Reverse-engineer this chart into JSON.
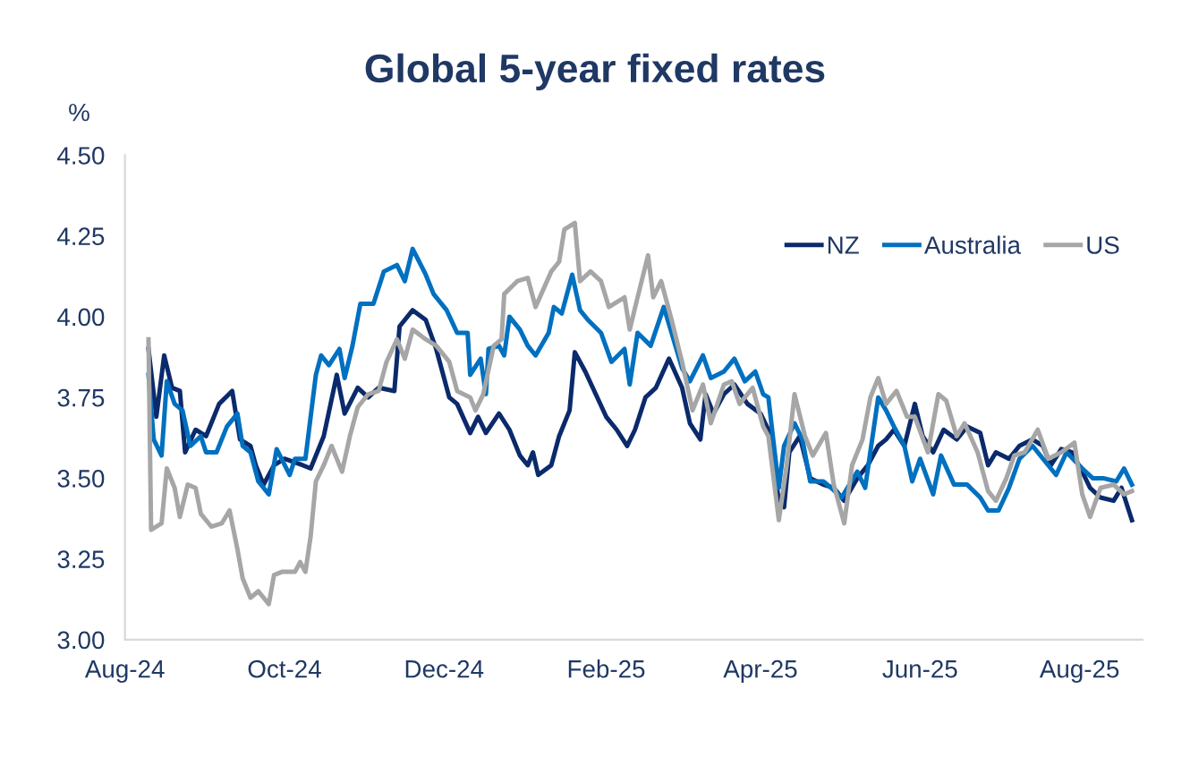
{
  "chart_data": {
    "type": "line",
    "title": "Global 5-year fixed rates",
    "ylabel": "%",
    "xlim": [
      "2024-08-01",
      "2025-08-25"
    ],
    "xticks": [
      {
        "value": "2024-08-01",
        "label": "Aug-24"
      },
      {
        "value": "2024-10-01",
        "label": "Oct-24"
      },
      {
        "value": "2024-12-01",
        "label": "Dec-24"
      },
      {
        "value": "2025-02-01",
        "label": "Feb-25"
      },
      {
        "value": "2025-04-01",
        "label": "Apr-25"
      },
      {
        "value": "2025-06-01",
        "label": "Jun-25"
      },
      {
        "value": "2025-08-01",
        "label": "Aug-25"
      }
    ],
    "ylim": [
      3.0,
      4.5
    ],
    "yticks": [
      {
        "value": 3.0,
        "label": "3.00"
      },
      {
        "value": 3.25,
        "label": "3.25"
      },
      {
        "value": 3.5,
        "label": "3.50"
      },
      {
        "value": 3.75,
        "label": "3.75"
      },
      {
        "value": 4.0,
        "label": "4.00"
      },
      {
        "value": 4.25,
        "label": "4.25"
      },
      {
        "value": 4.5,
        "label": "4.50"
      }
    ],
    "legend": "top right",
    "series": [
      {
        "name": "NZ",
        "color": "#0b2a6b",
        "x": [
          "2024-08-10",
          "2024-08-13",
          "2024-08-16",
          "2024-08-19",
          "2024-08-22",
          "2024-08-24",
          "2024-08-28",
          "2024-09-01",
          "2024-09-06",
          "2024-09-11",
          "2024-09-14",
          "2024-09-18",
          "2024-09-20",
          "2024-09-23",
          "2024-09-27",
          "2024-10-01",
          "2024-10-08",
          "2024-10-11",
          "2024-10-16",
          "2024-10-21",
          "2024-10-24",
          "2024-10-29",
          "2024-11-02",
          "2024-11-06",
          "2024-11-12",
          "2024-11-14",
          "2024-11-19",
          "2024-11-24",
          "2024-11-28",
          "2024-12-03",
          "2024-12-06",
          "2024-12-11",
          "2024-12-14",
          "2024-12-17",
          "2024-12-22",
          "2024-12-26",
          "2024-12-30",
          "2025-01-02",
          "2025-01-04",
          "2025-01-06",
          "2025-01-11",
          "2025-01-14",
          "2025-01-18",
          "2025-01-20",
          "2025-01-24",
          "2025-01-28",
          "2025-02-01",
          "2025-02-05",
          "2025-02-09",
          "2025-02-12",
          "2025-02-16",
          "2025-02-20",
          "2025-02-25",
          "2025-03-02",
          "2025-03-05",
          "2025-03-09",
          "2025-03-11",
          "2025-03-14",
          "2025-03-18",
          "2025-03-22",
          "2025-03-27",
          "2025-04-01",
          "2025-04-04",
          "2025-04-08",
          "2025-04-10",
          "2025-04-12",
          "2025-04-16",
          "2025-04-20",
          "2025-04-25",
          "2025-04-29",
          "2025-05-03",
          "2025-05-08",
          "2025-05-12",
          "2025-05-16",
          "2025-05-19",
          "2025-05-22",
          "2025-05-26",
          "2025-05-30",
          "2025-06-02",
          "2025-06-06",
          "2025-06-10",
          "2025-06-15",
          "2025-06-19",
          "2025-06-24",
          "2025-06-27",
          "2025-06-30",
          "2025-07-05",
          "2025-07-09",
          "2025-07-14",
          "2025-07-18",
          "2025-07-21",
          "2025-07-25",
          "2025-07-29",
          "2025-08-02",
          "2025-08-05",
          "2025-08-09",
          "2025-08-14",
          "2025-08-17",
          "2025-08-21"
        ],
        "values": [
          3.9,
          3.69,
          3.88,
          3.78,
          3.77,
          3.58,
          3.65,
          3.63,
          3.73,
          3.77,
          3.62,
          3.6,
          3.54,
          3.48,
          3.54,
          3.56,
          3.54,
          3.53,
          3.63,
          3.82,
          3.7,
          3.78,
          3.75,
          3.78,
          3.77,
          3.97,
          4.02,
          3.99,
          3.9,
          3.75,
          3.73,
          3.64,
          3.69,
          3.64,
          3.7,
          3.65,
          3.57,
          3.54,
          3.58,
          3.51,
          3.54,
          3.63,
          3.71,
          3.89,
          3.83,
          3.76,
          3.69,
          3.65,
          3.6,
          3.65,
          3.75,
          3.78,
          3.87,
          3.78,
          3.67,
          3.62,
          3.76,
          3.7,
          3.76,
          3.79,
          3.73,
          3.7,
          3.65,
          3.43,
          3.41,
          3.58,
          3.63,
          3.5,
          3.48,
          3.47,
          3.43,
          3.5,
          3.54,
          3.6,
          3.62,
          3.65,
          3.6,
          3.73,
          3.63,
          3.58,
          3.65,
          3.62,
          3.66,
          3.64,
          3.54,
          3.58,
          3.56,
          3.6,
          3.62,
          3.6,
          3.54,
          3.59,
          3.58,
          3.52,
          3.47,
          3.44,
          3.43,
          3.47,
          3.37
        ]
      },
      {
        "name": "Australia",
        "color": "#0070c0",
        "x": [
          "2024-08-10",
          "2024-08-12",
          "2024-08-15",
          "2024-08-17",
          "2024-08-20",
          "2024-08-23",
          "2024-08-26",
          "2024-08-30",
          "2024-09-01",
          "2024-09-05",
          "2024-09-09",
          "2024-09-13",
          "2024-09-15",
          "2024-09-18",
          "2024-09-21",
          "2024-09-25",
          "2024-09-28",
          "2024-10-03",
          "2024-10-05",
          "2024-10-09",
          "2024-10-13",
          "2024-10-15",
          "2024-10-18",
          "2024-10-22",
          "2024-10-24",
          "2024-10-27",
          "2024-10-30",
          "2024-11-04",
          "2024-11-08",
          "2024-11-13",
          "2024-11-16",
          "2024-11-19",
          "2024-11-24",
          "2024-11-27",
          "2024-12-02",
          "2024-12-06",
          "2024-12-10",
          "2024-12-11",
          "2024-12-15",
          "2024-12-17",
          "2024-12-18",
          "2024-12-22",
          "2024-12-24",
          "2024-12-26",
          "2024-12-30",
          "2025-01-02",
          "2025-01-05",
          "2025-01-10",
          "2025-01-12",
          "2025-01-15",
          "2025-01-19",
          "2025-01-22",
          "2025-01-25",
          "2025-01-30",
          "2025-02-03",
          "2025-02-08",
          "2025-02-10",
          "2025-02-13",
          "2025-02-18",
          "2025-02-23",
          "2025-02-26",
          "2025-03-02",
          "2025-03-05",
          "2025-03-10",
          "2025-03-13",
          "2025-03-18",
          "2025-03-22",
          "2025-03-26",
          "2025-03-30",
          "2025-04-02",
          "2025-04-04",
          "2025-04-08",
          "2025-04-10",
          "2025-04-14",
          "2025-04-17",
          "2025-04-20",
          "2025-04-25",
          "2025-04-28",
          "2025-05-02",
          "2025-05-08",
          "2025-05-11",
          "2025-05-16",
          "2025-05-19",
          "2025-05-22",
          "2025-05-26",
          "2025-05-29",
          "2025-06-01",
          "2025-06-06",
          "2025-06-09",
          "2025-06-14",
          "2025-06-19",
          "2025-06-24",
          "2025-06-27",
          "2025-07-01",
          "2025-07-05",
          "2025-07-09",
          "2025-07-14",
          "2025-07-18",
          "2025-07-23",
          "2025-07-27",
          "2025-08-02",
          "2025-08-06",
          "2025-08-10",
          "2025-08-15",
          "2025-08-18",
          "2025-08-21"
        ],
        "values": [
          3.82,
          3.62,
          3.57,
          3.8,
          3.73,
          3.71,
          3.6,
          3.63,
          3.58,
          3.58,
          3.66,
          3.7,
          3.6,
          3.58,
          3.49,
          3.45,
          3.59,
          3.51,
          3.56,
          3.56,
          3.82,
          3.88,
          3.85,
          3.9,
          3.81,
          3.91,
          4.04,
          4.04,
          4.14,
          4.16,
          4.11,
          4.21,
          4.13,
          4.07,
          4.02,
          3.95,
          3.95,
          3.82,
          3.87,
          3.76,
          3.9,
          3.91,
          3.88,
          4.0,
          3.96,
          3.91,
          3.88,
          3.95,
          4.03,
          4.01,
          4.13,
          4.02,
          3.99,
          3.95,
          3.86,
          3.9,
          3.79,
          3.95,
          3.91,
          4.03,
          3.95,
          3.84,
          3.8,
          3.88,
          3.81,
          3.83,
          3.87,
          3.8,
          3.83,
          3.76,
          3.75,
          3.47,
          3.6,
          3.67,
          3.62,
          3.49,
          3.49,
          3.47,
          3.44,
          3.52,
          3.47,
          3.75,
          3.71,
          3.66,
          3.6,
          3.49,
          3.56,
          3.45,
          3.57,
          3.48,
          3.48,
          3.44,
          3.4,
          3.4,
          3.47,
          3.56,
          3.6,
          3.56,
          3.51,
          3.58,
          3.53,
          3.5,
          3.5,
          3.49,
          3.53,
          3.48
        ]
      },
      {
        "name": "US",
        "color": "#a6a6a6",
        "x": [
          "2024-08-10",
          "2024-08-11",
          "2024-08-15",
          "2024-08-17",
          "2024-08-20",
          "2024-08-22",
          "2024-08-25",
          "2024-08-28",
          "2024-08-30",
          "2024-09-03",
          "2024-09-07",
          "2024-09-10",
          "2024-09-13",
          "2024-09-15",
          "2024-09-18",
          "2024-09-21",
          "2024-09-25",
          "2024-09-27",
          "2024-09-30",
          "2024-10-05",
          "2024-10-07",
          "2024-10-09",
          "2024-10-11",
          "2024-10-13",
          "2024-10-16",
          "2024-10-19",
          "2024-10-23",
          "2024-10-26",
          "2024-10-29",
          "2024-11-02",
          "2024-11-06",
          "2024-11-09",
          "2024-11-13",
          "2024-11-16",
          "2024-11-19",
          "2024-11-24",
          "2024-11-28",
          "2024-12-03",
          "2024-12-06",
          "2024-12-11",
          "2024-12-13",
          "2024-12-16",
          "2024-12-20",
          "2024-12-23",
          "2024-12-24",
          "2024-12-29",
          "2025-01-02",
          "2025-01-05",
          "2025-01-11",
          "2025-01-14",
          "2025-01-16",
          "2025-01-20",
          "2025-01-22",
          "2025-01-26",
          "2025-01-30",
          "2025-02-02",
          "2025-02-08",
          "2025-02-10",
          "2025-02-13",
          "2025-02-17",
          "2025-02-19",
          "2025-02-22",
          "2025-02-26",
          "2025-03-02",
          "2025-03-06",
          "2025-03-10",
          "2025-03-13",
          "2025-03-18",
          "2025-03-21",
          "2025-03-24",
          "2025-03-29",
          "2025-04-02",
          "2025-04-04",
          "2025-04-08",
          "2025-04-11",
          "2025-04-14",
          "2025-04-18",
          "2025-04-21",
          "2025-04-26",
          "2025-04-29",
          "2025-05-03",
          "2025-05-06",
          "2025-05-10",
          "2025-05-13",
          "2025-05-16",
          "2025-05-19",
          "2025-05-23",
          "2025-05-27",
          "2025-05-30",
          "2025-06-04",
          "2025-06-08",
          "2025-06-11",
          "2025-06-15",
          "2025-06-18",
          "2025-06-23",
          "2025-06-27",
          "2025-06-30",
          "2025-07-04",
          "2025-07-07",
          "2025-07-11",
          "2025-07-16",
          "2025-07-20",
          "2025-07-25",
          "2025-07-30",
          "2025-08-02",
          "2025-08-05",
          "2025-08-09",
          "2025-08-14",
          "2025-08-18",
          "2025-08-21"
        ],
        "values": [
          3.93,
          3.34,
          3.36,
          3.53,
          3.47,
          3.38,
          3.48,
          3.47,
          3.39,
          3.35,
          3.36,
          3.4,
          3.28,
          3.19,
          3.13,
          3.15,
          3.11,
          3.2,
          3.21,
          3.21,
          3.24,
          3.21,
          3.32,
          3.49,
          3.54,
          3.6,
          3.52,
          3.63,
          3.72,
          3.76,
          3.77,
          3.86,
          3.93,
          3.87,
          3.96,
          3.93,
          3.91,
          3.86,
          3.77,
          3.75,
          3.71,
          3.76,
          3.91,
          3.93,
          4.07,
          4.11,
          4.12,
          4.03,
          4.14,
          4.17,
          4.27,
          4.29,
          4.11,
          4.14,
          4.11,
          4.03,
          4.06,
          3.96,
          4.06,
          4.19,
          4.06,
          4.11,
          3.99,
          3.86,
          3.71,
          3.79,
          3.67,
          3.79,
          3.8,
          3.73,
          3.78,
          3.66,
          3.63,
          3.37,
          3.54,
          3.76,
          3.63,
          3.57,
          3.64,
          3.48,
          3.36,
          3.54,
          3.62,
          3.75,
          3.81,
          3.73,
          3.77,
          3.69,
          3.69,
          3.58,
          3.76,
          3.74,
          3.63,
          3.67,
          3.58,
          3.46,
          3.43,
          3.5,
          3.57,
          3.58,
          3.65,
          3.56,
          3.58,
          3.61,
          3.45,
          3.38,
          3.47,
          3.48,
          3.45,
          3.46
        ]
      }
    ]
  }
}
